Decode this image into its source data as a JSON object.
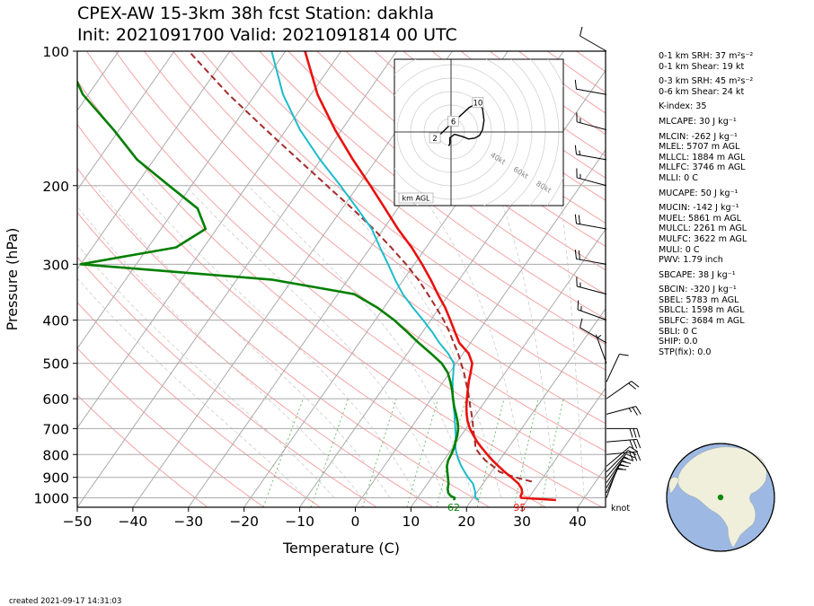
{
  "title_line1": "CPEX-AW 15-3km  38h fcst  Station: dakhla",
  "title_line2": "Init: 2021091700  Valid: 2021091814 00 UTC",
  "footer": "created 2021-09-17 14:31:03",
  "colors": {
    "temperature": "#e8120e",
    "dewpoint": "#007f00",
    "wetbulb": "#1cbccc",
    "parcel": "#a52a2a",
    "dry_adiabat": "#f4a3a3",
    "isotherm": "#aaaaaa",
    "mixing_ratio": "#6cc06c",
    "globe_ocean": "#9db8e2",
    "globe_land": "#efefdc"
  },
  "params": [
    "0-1 km SRH: 37 m²s⁻²",
    "0-1 km Shear: 19 kt",
    "0-3 km SRH: 45 m²s⁻²",
    "0-6 km Shear: 24 kt",
    "K-index: 35",
    "MLCAPE: 30 J kg⁻¹",
    "MLCIN: -262 J kg⁻¹",
    "MLEL: 5707 m AGL",
    "MLLCL: 1884 m AGL",
    "MLLFC: 3746 m AGL",
    "MLLI: 0 C",
    "MUCAPE: 50 J kg⁻¹",
    "MUCIN: -142 J kg⁻¹",
    "MUEL: 5861 m AGL",
    "MULCL: 2261 m AGL",
    "MULFC: 3622 m AGL",
    "MULI: 0 C",
    "PWV: 1.79 inch",
    "SBCAPE: 38 J kg⁻¹",
    "SBCIN: -320 J kg⁻¹",
    "SBEL: 5783 m AGL",
    "SBLCL: 1598 m AGL",
    "SBLFC: 3684 m AGL",
    "SBLI: 0 C",
    "SHIP: 0.0",
    "STP(fix): 0.0"
  ],
  "chart_data": {
    "type": "line",
    "xlabel": "Temperature (C)",
    "ylabel": "Pressure (hPa)",
    "xlim": [
      -50,
      45
    ],
    "ylim": [
      1050,
      100
    ],
    "y_scale": "log",
    "x_ticks": [
      -50,
      -40,
      -30,
      -20,
      -10,
      0,
      10,
      20,
      30,
      40
    ],
    "y_ticks": [
      100,
      200,
      300,
      400,
      500,
      600,
      700,
      800,
      900,
      1000
    ],
    "grid": true,
    "wind_units_label": "knot",
    "surface_labels": {
      "temperature": "95",
      "dewpoint": "62"
    },
    "series": [
      {
        "key": "temperature",
        "pressure": [
          1012,
          1000,
          990,
          975,
          955,
          930,
          900,
          875,
          850,
          825,
          800,
          775,
          750,
          725,
          700,
          675,
          650,
          625,
          600,
          575,
          550,
          525,
          500,
          475,
          450,
          425,
          400,
          375,
          350,
          325,
          300,
          275,
          250,
          225,
          200,
          175,
          150,
          125,
          100
        ],
        "values": [
          35.2,
          28.6,
          28.3,
          28.2,
          27.6,
          26.4,
          24.3,
          22.4,
          20.6,
          18.8,
          17.1,
          15.4,
          13.7,
          12.2,
          10.7,
          9.4,
          8.3,
          7.3,
          6.4,
          5.5,
          4.6,
          3.8,
          2.9,
          1.0,
          -2.0,
          -4.2,
          -6.5,
          -9.0,
          -12.0,
          -15.1,
          -18.6,
          -22.6,
          -27.4,
          -32.3,
          -37.8,
          -44.2,
          -51.2,
          -58.8,
          -66.5
        ]
      },
      {
        "key": "dewpoint",
        "pressure": [
          1012,
          1000,
          990,
          975,
          955,
          930,
          900,
          875,
          850,
          825,
          800,
          775,
          750,
          725,
          700,
          675,
          650,
          625,
          600,
          575,
          550,
          525,
          500,
          475,
          450,
          425,
          400,
          375,
          350,
          325,
          300,
          275,
          250,
          225,
          200,
          175,
          150,
          125,
          100
        ],
        "values": [
          16.8,
          16.7,
          15.7,
          14.9,
          14.3,
          13.8,
          12.9,
          12.1,
          11.3,
          10.8,
          10.6,
          10.3,
          9.8,
          9.3,
          8.6,
          7.6,
          6.4,
          5.1,
          3.9,
          2.7,
          1.3,
          -0.3,
          -2.6,
          -5.8,
          -9.3,
          -12.8,
          -16.6,
          -21.2,
          -27.0,
          -43.5,
          -80.0,
          -65.0,
          -62.0,
          -66.0,
          -74.0,
          -83.0,
          -91.0,
          -101.0,
          -110.0
        ]
      },
      {
        "key": "wetbulb",
        "pressure": [
          1012,
          1000,
          990,
          975,
          955,
          930,
          900,
          875,
          850,
          825,
          800,
          775,
          750,
          725,
          700,
          675,
          650,
          625,
          600,
          575,
          550,
          525,
          500,
          475,
          450,
          425,
          400,
          375,
          350,
          325,
          300,
          275,
          250,
          225,
          200,
          175,
          150,
          125,
          100
        ],
        "values": [
          21.3,
          20.5,
          20.1,
          19.8,
          19.1,
          18.2,
          16.5,
          15.2,
          13.9,
          12.7,
          11.6,
          10.6,
          9.8,
          9.0,
          8.1,
          7.1,
          6.1,
          5.0,
          3.9,
          2.8,
          1.7,
          0.7,
          -0.4,
          -2.7,
          -5.6,
          -8.3,
          -11.4,
          -14.8,
          -18.3,
          -21.5,
          -24.7,
          -28.3,
          -32.1,
          -37.3,
          -43.2,
          -50.1,
          -57.5,
          -65.0,
          -72.5
        ]
      },
      {
        "key": "parcel",
        "pressure": [
          920,
          900,
          875,
          850,
          825,
          800,
          775,
          750,
          725,
          700,
          675,
          650,
          625,
          600,
          575,
          550,
          525,
          500,
          475,
          450,
          425,
          400,
          375,
          350,
          325,
          300,
          275,
          250,
          225,
          200,
          175,
          150,
          125,
          100
        ],
        "values": [
          28.5,
          25.0,
          21.5,
          19.6,
          17.5,
          15.8,
          14.2,
          13.3,
          12.3,
          11.3,
          10.3,
          9.2,
          8.0,
          6.8,
          5.5,
          4.1,
          2.6,
          0.9,
          -0.9,
          -3.0,
          -5.2,
          -7.7,
          -10.6,
          -13.8,
          -17.3,
          -21.5,
          -26.3,
          -31.8,
          -38.2,
          -45.6,
          -54.0,
          -63.6,
          -74.8,
          -87.4
        ]
      }
    ],
    "wind_barbs": [
      {
        "pressure": 1000,
        "speed_kt": 10,
        "dir_deg": 20
      },
      {
        "pressure": 975,
        "speed_kt": 15,
        "dir_deg": 25
      },
      {
        "pressure": 950,
        "speed_kt": 15,
        "dir_deg": 30
      },
      {
        "pressure": 925,
        "speed_kt": 15,
        "dir_deg": 35
      },
      {
        "pressure": 900,
        "speed_kt": 15,
        "dir_deg": 40
      },
      {
        "pressure": 875,
        "speed_kt": 10,
        "dir_deg": 45
      },
      {
        "pressure": 850,
        "speed_kt": 10,
        "dir_deg": 50
      },
      {
        "pressure": 800,
        "speed_kt": 30,
        "dir_deg": 85
      },
      {
        "pressure": 750,
        "speed_kt": 30,
        "dir_deg": 85
      },
      {
        "pressure": 700,
        "speed_kt": 30,
        "dir_deg": 90
      },
      {
        "pressure": 650,
        "speed_kt": 25,
        "dir_deg": 75
      },
      {
        "pressure": 600,
        "speed_kt": 20,
        "dir_deg": 55
      },
      {
        "pressure": 550,
        "speed_kt": 10,
        "dir_deg": 25
      },
      {
        "pressure": 500,
        "speed_kt": 5,
        "dir_deg": 340
      },
      {
        "pressure": 450,
        "speed_kt": 10,
        "dir_deg": 300
      },
      {
        "pressure": 400,
        "speed_kt": 15,
        "dir_deg": 290
      },
      {
        "pressure": 350,
        "speed_kt": 15,
        "dir_deg": 285
      },
      {
        "pressure": 300,
        "speed_kt": 20,
        "dir_deg": 280
      },
      {
        "pressure": 250,
        "speed_kt": 20,
        "dir_deg": 280
      },
      {
        "pressure": 200,
        "speed_kt": 15,
        "dir_deg": 285
      },
      {
        "pressure": 175,
        "speed_kt": 15,
        "dir_deg": 280
      },
      {
        "pressure": 150,
        "speed_kt": 15,
        "dir_deg": 285
      },
      {
        "pressure": 125,
        "speed_kt": 10,
        "dir_deg": 280
      },
      {
        "pressure": 100,
        "speed_kt": 10,
        "dir_deg": 300
      }
    ],
    "hodograph": {
      "label": "km AGL",
      "ring_labels": [
        "40kt",
        "60kt",
        "80kt"
      ],
      "point_labels": [
        "2",
        "6",
        "10"
      ],
      "u": [
        -8.6,
        -6.9,
        -4.2,
        -1.5,
        1.0,
        4.0,
        7.8,
        11.5,
        13.5,
        14.1,
        13.5,
        12.2,
        10.2,
        7.5,
        5.0,
        1.5,
        -0.5,
        -0.5,
        -1.0
      ],
      "v": [
        -4.4,
        -2.7,
        -0.6,
        2.0,
        4.5,
        7.0,
        10.5,
        12.5,
        10.0,
        5.0,
        1.0,
        -1.5,
        -2.6,
        -3.0,
        -2.0,
        -1.0,
        -2.5,
        -5.0,
        -6.0
      ]
    }
  }
}
